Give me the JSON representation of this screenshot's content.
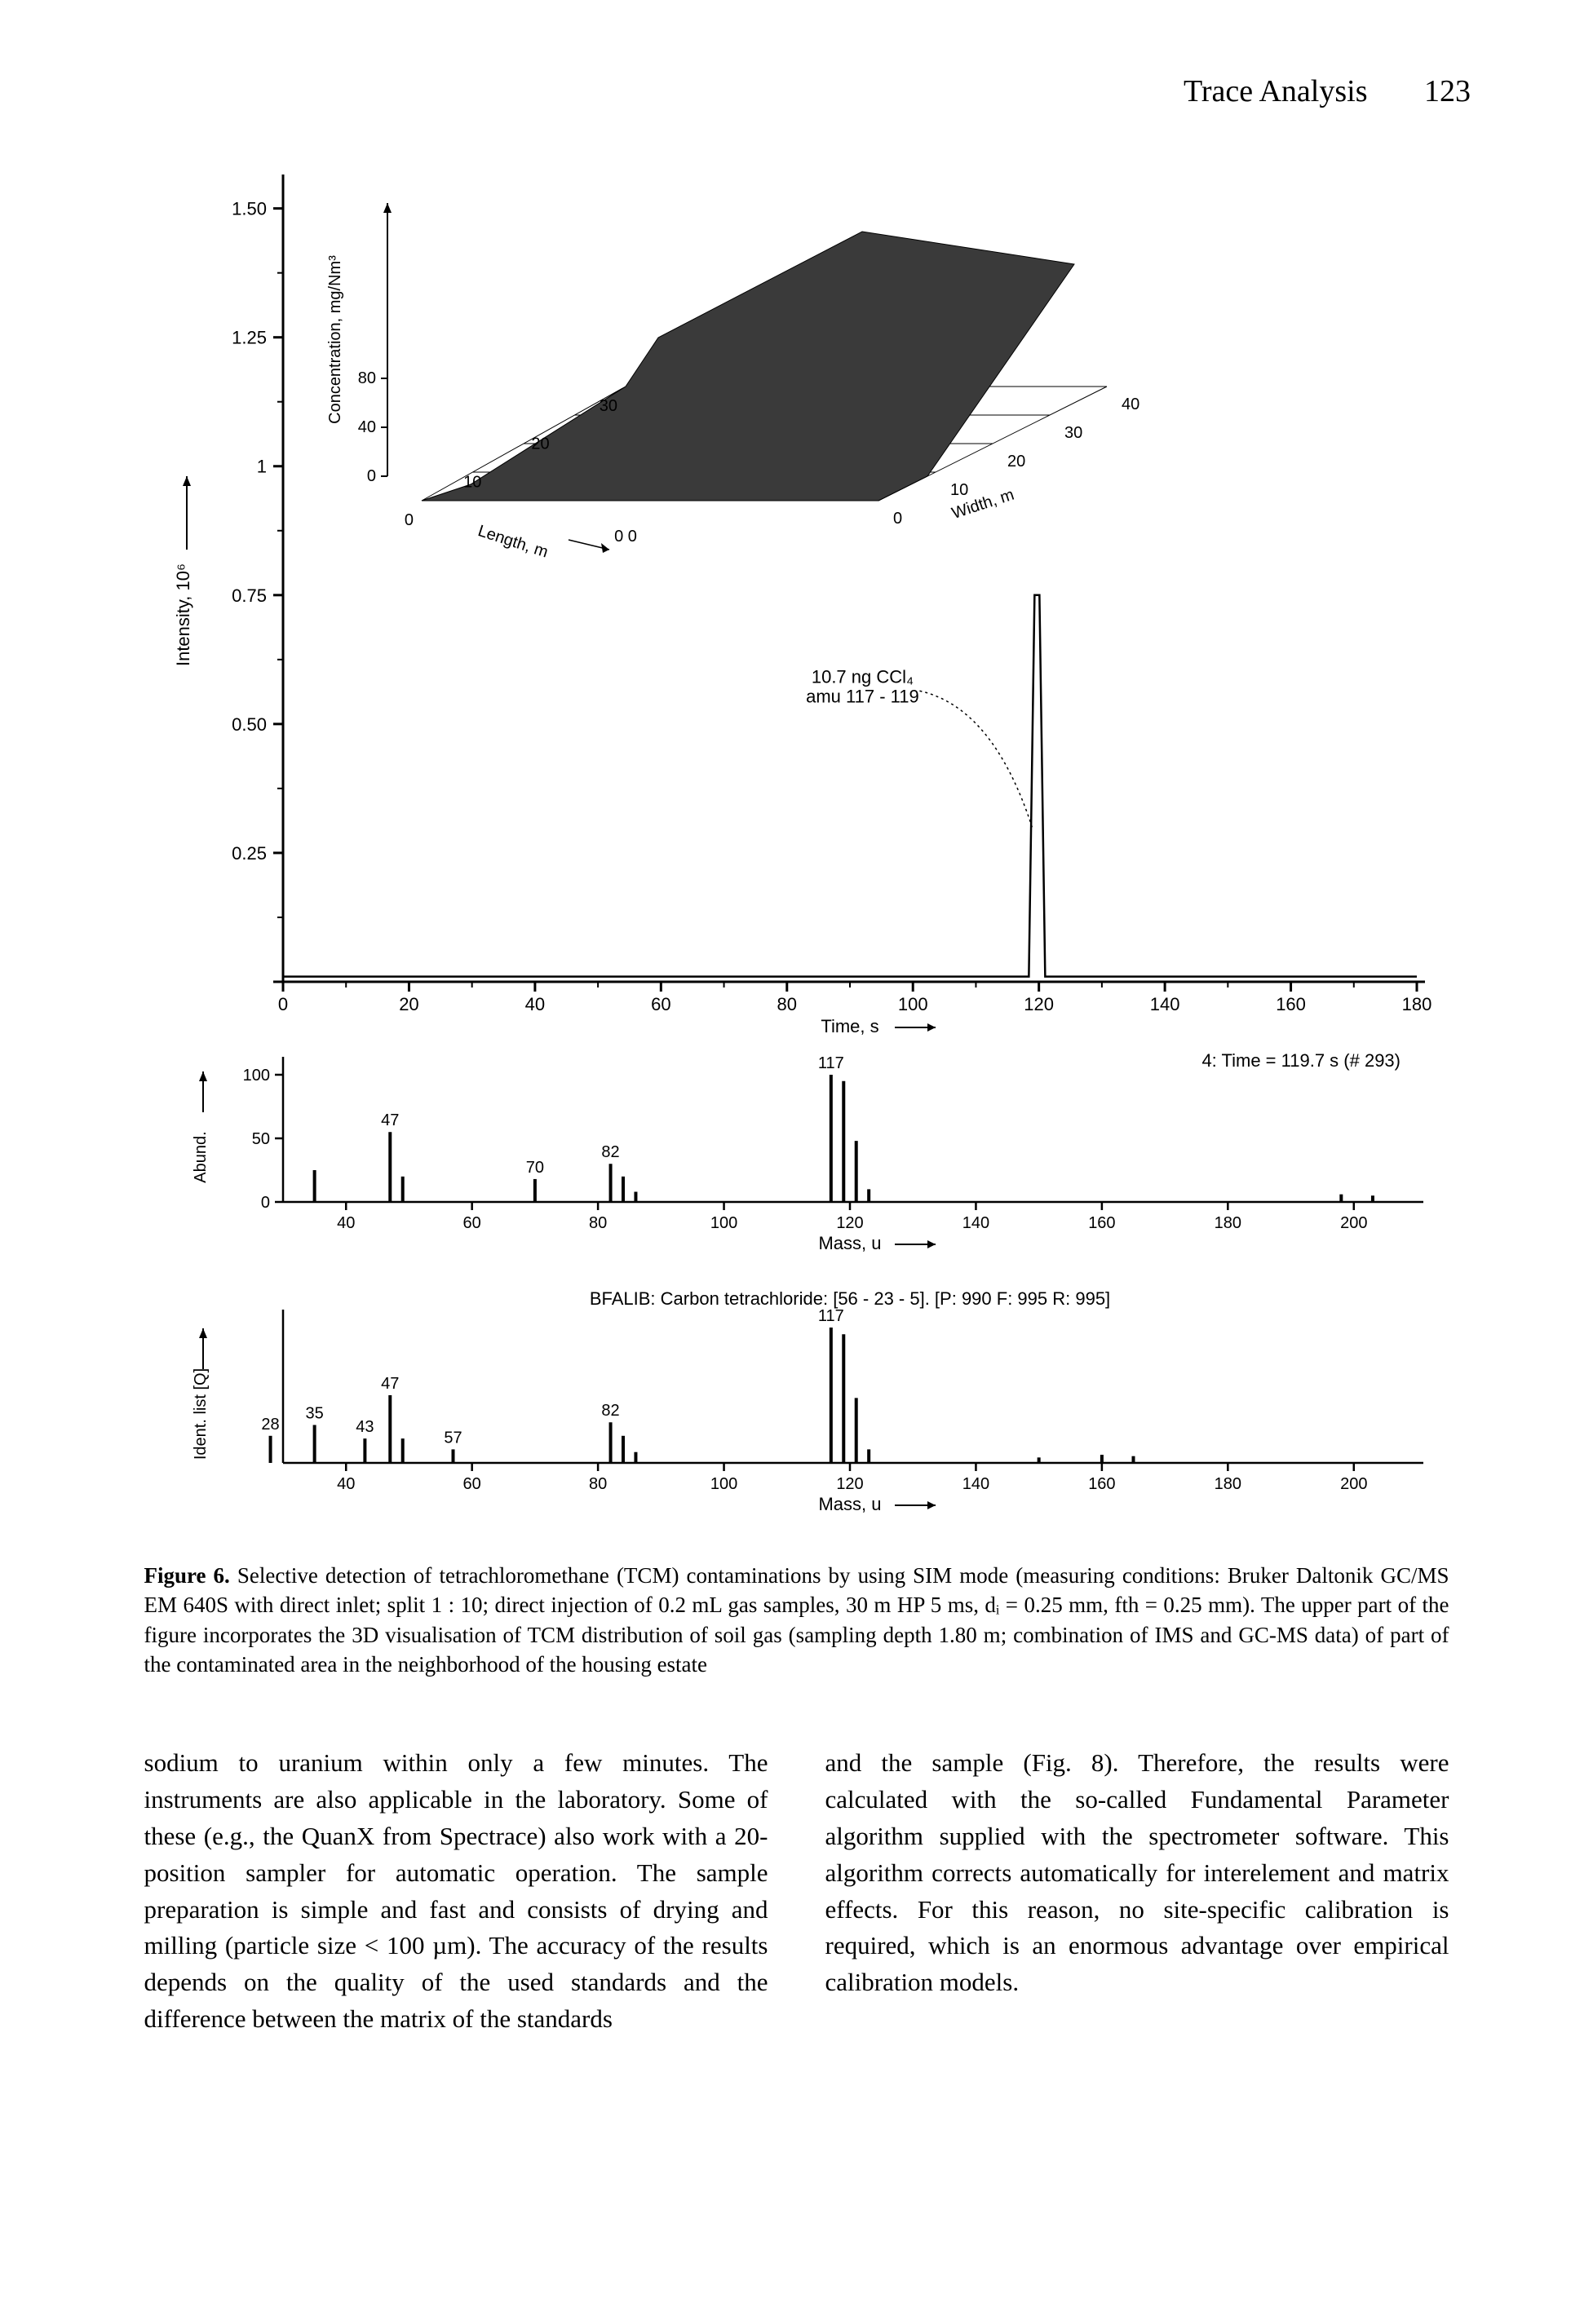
{
  "header": {
    "title": "Trace Analysis",
    "page": "123"
  },
  "main_chart": {
    "type": "line",
    "xlabel": "Time, s",
    "ylabel": "Intensity, 10⁶",
    "xlim": [
      0,
      180
    ],
    "xtick_step": 20,
    "ylim": [
      0,
      1.55
    ],
    "yticks": [
      0,
      0.25,
      0.5,
      0.75,
      1.0,
      1.25,
      1.5
    ],
    "peak": {
      "x": 119.7,
      "height": 0.75
    },
    "annotation_lines": [
      "10.7 ng CCl₄",
      "amu 117 - 119"
    ],
    "baseline_y": 0.01,
    "line_color": "#000000",
    "axis_color": "#000000",
    "background_color": "#ffffff"
  },
  "inset_3d": {
    "type": "surface",
    "ylabel": "Concentration, mg/Nm³",
    "yticks": [
      0,
      40,
      80
    ],
    "left_axis_label": "Length, m",
    "right_axis_label": "Width, m",
    "left_ticks": [
      0,
      10,
      20,
      30
    ],
    "right_ticks": [
      0,
      10,
      20,
      30,
      40
    ],
    "surface_color": "#3a3a3a",
    "grid_color": "#000000"
  },
  "mass_chart_1": {
    "type": "bar",
    "ylabel": "Abund.",
    "xlabel": "Mass, u",
    "right_annotation": "4: Time = 119.7 s (# 293)",
    "xlim": [
      30,
      210
    ],
    "xtick_step": 20,
    "ylim": [
      0,
      100
    ],
    "yticks": [
      0,
      50,
      100
    ],
    "peaks": [
      {
        "x": 35,
        "h": 25
      },
      {
        "x": 47,
        "h": 55,
        "label": "47"
      },
      {
        "x": 49,
        "h": 20
      },
      {
        "x": 70,
        "h": 18,
        "label": "70"
      },
      {
        "x": 82,
        "h": 30,
        "label": "82"
      },
      {
        "x": 84,
        "h": 20
      },
      {
        "x": 86,
        "h": 8
      },
      {
        "x": 117,
        "h": 100,
        "label": "117"
      },
      {
        "x": 119,
        "h": 95
      },
      {
        "x": 121,
        "h": 48
      },
      {
        "x": 123,
        "h": 10
      },
      {
        "x": 198,
        "h": 6
      },
      {
        "x": 203,
        "h": 5
      }
    ],
    "bar_color": "#000000"
  },
  "mass_chart_2": {
    "type": "bar",
    "ylabel": "Ident. list [Q]",
    "xlabel": "Mass, u",
    "top_annotation": "BFALIB: Carbon tetrachloride: [56 - 23 - 5]. [P: 990 F: 995 R: 995]",
    "xlim": [
      30,
      210
    ],
    "xtick_step": 20,
    "peaks": [
      {
        "x": 28,
        "h": 20,
        "label": "28"
      },
      {
        "x": 35,
        "h": 28,
        "label": "35"
      },
      {
        "x": 43,
        "h": 18,
        "label": "43"
      },
      {
        "x": 47,
        "h": 50,
        "label": "47"
      },
      {
        "x": 49,
        "h": 18
      },
      {
        "x": 57,
        "h": 10,
        "label": "57"
      },
      {
        "x": 82,
        "h": 30,
        "label": "82"
      },
      {
        "x": 84,
        "h": 20
      },
      {
        "x": 86,
        "h": 8
      },
      {
        "x": 117,
        "h": 100,
        "label": "117"
      },
      {
        "x": 119,
        "h": 95
      },
      {
        "x": 121,
        "h": 48
      },
      {
        "x": 123,
        "h": 10
      },
      {
        "x": 150,
        "h": 4
      },
      {
        "x": 160,
        "h": 6
      },
      {
        "x": 165,
        "h": 5
      }
    ],
    "bar_color": "#000000"
  },
  "caption": {
    "lead": "Figure 6.",
    "text": "Selective detection of tetrachloromethane (TCM) contaminations by using SIM mode (measuring conditions: Bruker Daltonik GC/MS EM 640S with direct inlet; split 1 : 10; direct injection of 0.2 mL gas samples, 30 m HP 5 ms, dᵢ = 0.25 mm, fth = 0.25 mm). The upper part of the figure incorporates the 3D visualisation of TCM distribution of soil gas (sampling depth 1.80 m; combination of IMS and GC-MS data) of part of the contaminated area in the neighborhood of the housing estate"
  },
  "body": {
    "left": "sodium to uranium within only a few minutes. The instruments are also applicable in the laboratory. Some of these (e.g., the QuanX from Spectrace) also work with a 20-position sampler for automatic operation. The sample preparation is simple and fast and consists of drying and milling (particle size < 100 µm). The accuracy of the results depends on the quality of the used standards and the difference between the matrix of the standards",
    "right": "and the sample (Fig. 8). Therefore, the results were calculated with the so-called Fundamental Parameter algorithm supplied with the spectrometer software. This algorithm corrects automatically for interelement and matrix effects. For this reason, no site-specific calibration is required, which is an enormous advantage over empirical calibration models."
  },
  "style": {
    "font_body": "Times New Roman",
    "font_fig": "Arial",
    "text_color": "#000000",
    "bg_color": "#ffffff"
  }
}
